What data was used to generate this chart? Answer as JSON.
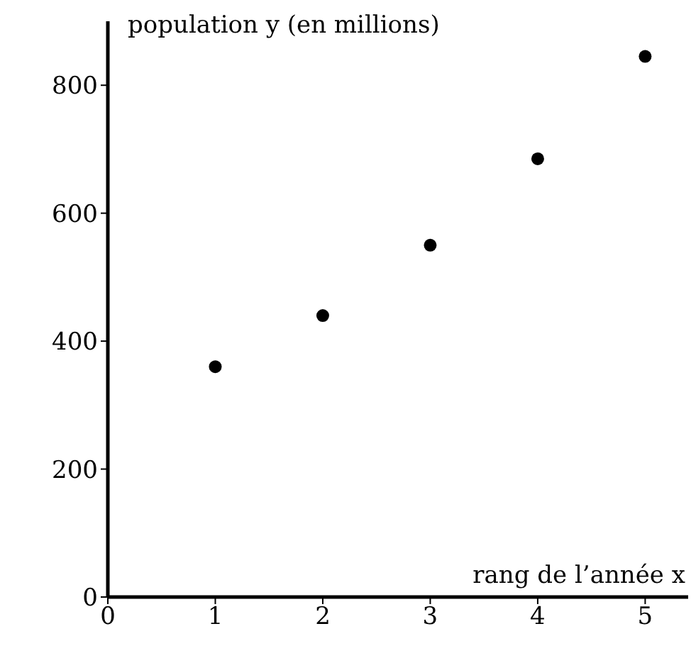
{
  "chart_data": {
    "type": "scatter",
    "xlabel": "rang de l’année x",
    "ylabel": "population y (en millions)",
    "x": [
      1,
      2,
      3,
      4,
      5
    ],
    "series": [
      {
        "color": "#000000",
        "values": [
          360,
          440,
          550,
          685,
          845
        ]
      }
    ],
    "xlim": [
      0,
      5.4
    ],
    "xticks": [
      0,
      1,
      2,
      3,
      4,
      5
    ],
    "ylim": [
      0,
      900
    ],
    "yticks": [
      0,
      200,
      400,
      600,
      800
    ],
    "marker": "circle",
    "grid": false,
    "legend": false
  }
}
